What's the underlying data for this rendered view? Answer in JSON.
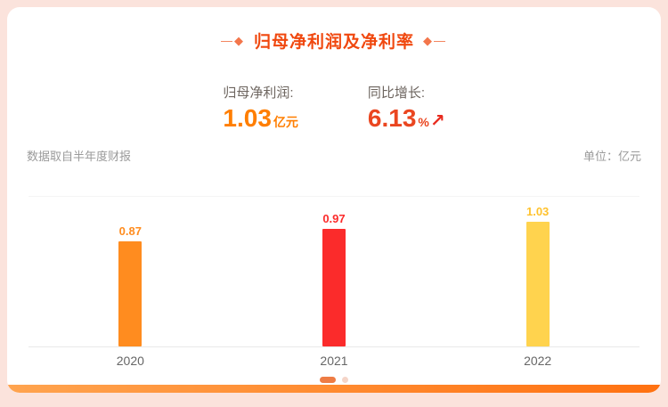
{
  "title": {
    "text": "归母净利润及净利率",
    "deco_left": "—◆",
    "deco_right": "◆—"
  },
  "stats": [
    {
      "label": "归母净利润:",
      "value": "1.03",
      "unit": "亿元"
    },
    {
      "label": "同比增长:",
      "value": "6.13",
      "unit": "%",
      "arrow": "↗"
    }
  ],
  "notes": {
    "source": "数据取自半年度财报",
    "unit": "单位：亿元"
  },
  "chart_data": {
    "type": "bar",
    "title": "归母净利润及净利率",
    "categories": [
      "2020",
      "2021",
      "2022"
    ],
    "values": [
      0.87,
      0.97,
      1.03
    ],
    "bar_colors": [
      "#ff8c1f",
      "#fb2b2b",
      "#ffd34e"
    ],
    "label_colors": [
      "#ff8c1f",
      "#fb2b2b",
      "#ffc22d"
    ],
    "xlabel": "",
    "ylabel": "亿元",
    "ylim": [
      0,
      1.25
    ],
    "grid": "baseline-and-top-only",
    "legend": "none"
  },
  "pagination": {
    "count": 2,
    "active_index": 0
  },
  "colors": {
    "page_background": "#fbe3dc",
    "card_background": "#ffffff",
    "title_accent": "#f0480f",
    "profit_value": "#ff7e00",
    "growth_value": "#ea4620",
    "footer_gradient_start": "#ffa44f",
    "footer_gradient_end": "#ff7111"
  }
}
